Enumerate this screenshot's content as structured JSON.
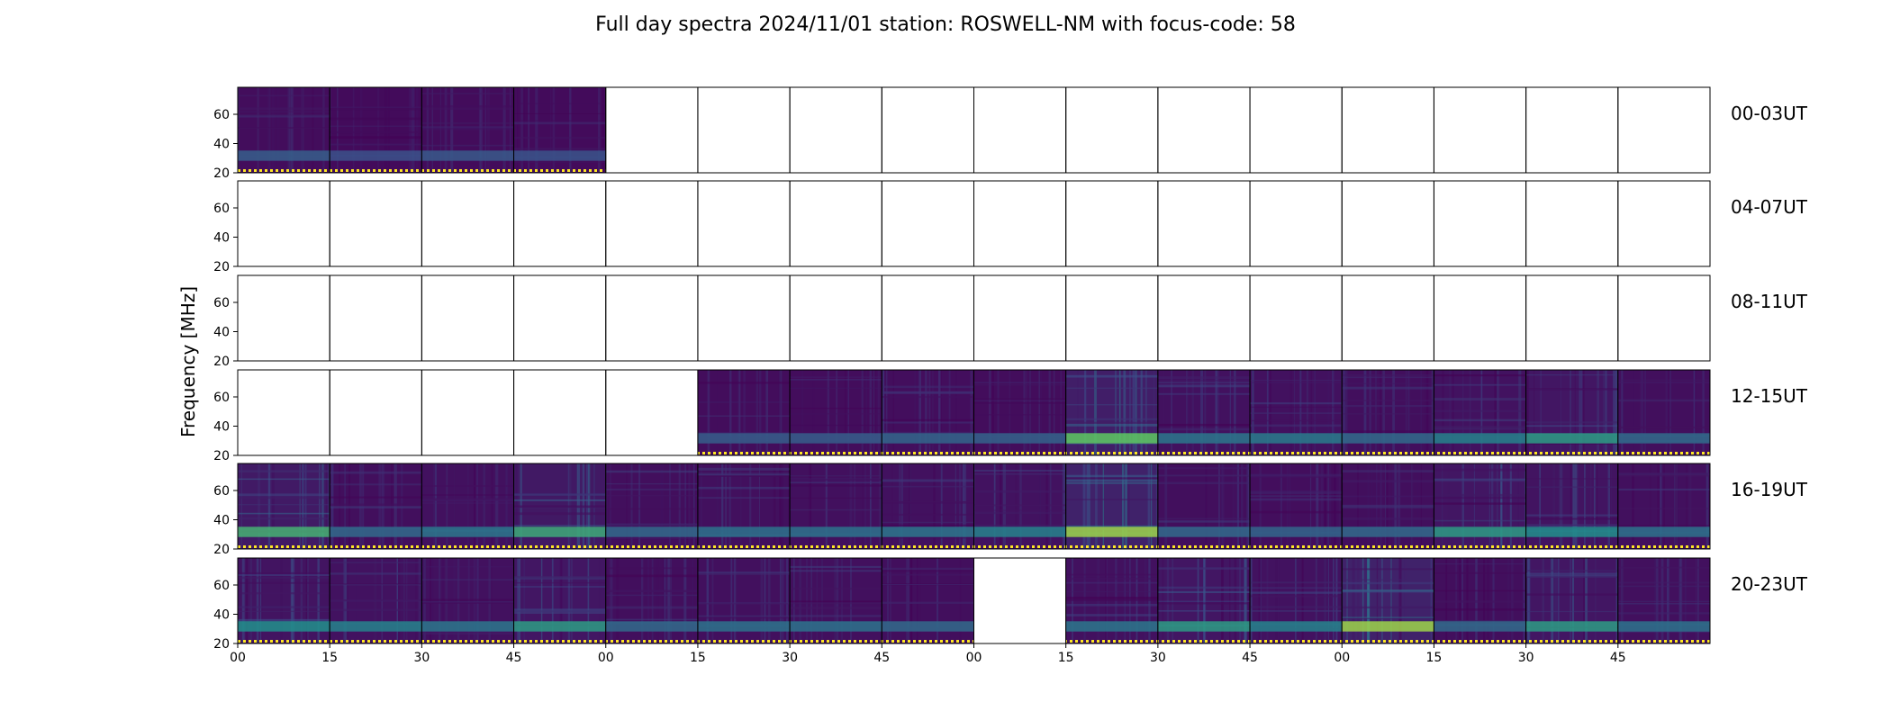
{
  "title": "Full day spectra 2024/11/01 station: ROSWELL-NM with focus-code: 58",
  "chart_data": {
    "type": "heatmap",
    "ylabel": "Frequency [MHz]",
    "y_ticks": [
      "20",
      "40",
      "60"
    ],
    "x_ticks": [
      "00",
      "15",
      "30",
      "45",
      "00",
      "15",
      "30",
      "45",
      "00",
      "15",
      "30",
      "45",
      "00",
      "15",
      "30",
      "45"
    ],
    "colormap": [
      "#440154",
      "#3b528b",
      "#21918c",
      "#5ec962",
      "#fde725"
    ],
    "marker_color": "#fde725",
    "panels_per_row": 16,
    "rows": [
      {
        "label": "00-03UT",
        "intensity": [
          0.3,
          0.25,
          0.28,
          0.26,
          null,
          null,
          null,
          null,
          null,
          null,
          null,
          null,
          null,
          null,
          null,
          null
        ]
      },
      {
        "label": "04-07UT",
        "intensity": [
          null,
          null,
          null,
          null,
          null,
          null,
          null,
          null,
          null,
          null,
          null,
          null,
          null,
          null,
          null,
          null
        ]
      },
      {
        "label": "08-11UT",
        "intensity": [
          null,
          null,
          null,
          null,
          null,
          null,
          null,
          null,
          null,
          null,
          null,
          null,
          null,
          null,
          null,
          null
        ]
      },
      {
        "label": "12-15UT",
        "intensity": [
          null,
          null,
          null,
          null,
          null,
          0.3,
          0.3,
          0.33,
          0.32,
          0.75,
          0.4,
          0.42,
          0.35,
          0.45,
          0.55,
          0.35
        ]
      },
      {
        "label": "16-19UT",
        "intensity": [
          0.65,
          0.35,
          0.4,
          0.62,
          0.35,
          0.38,
          0.38,
          0.4,
          0.45,
          0.85,
          0.35,
          0.33,
          0.35,
          0.55,
          0.5,
          0.38
        ]
      },
      {
        "label": "20-23UT",
        "intensity": [
          0.5,
          0.45,
          0.4,
          0.55,
          0.35,
          0.38,
          0.38,
          0.35,
          null,
          0.4,
          0.55,
          0.45,
          0.85,
          0.35,
          0.55,
          0.38
        ]
      }
    ]
  }
}
